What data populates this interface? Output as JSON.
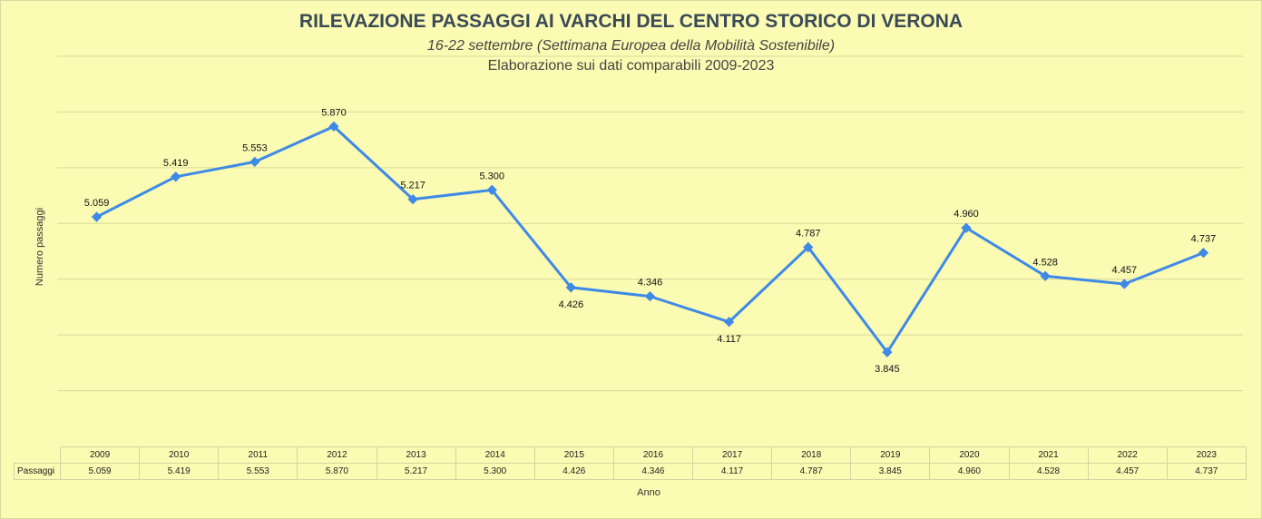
{
  "chart_data": {
    "type": "line",
    "title": "RILEVAZIONE PASSAGGI AI VARCHI DEL CENTRO STORICO DI VERONA",
    "subtitle": "16-22 settembre (Settimana Europea della Mobilità Sostenibile)",
    "subtitle2": "Elaborazione sui dati comparabili 2009-2023",
    "xlabel": "Anno",
    "ylabel": "Numero passaggi",
    "categories": [
      "2009",
      "2010",
      "2011",
      "2012",
      "2013",
      "2014",
      "2015",
      "2016",
      "2017",
      "2018",
      "2019",
      "2020",
      "2021",
      "2022",
      "2023"
    ],
    "series": [
      {
        "name": "Passaggi",
        "values": [
          5059,
          5419,
          5553,
          5870,
          5217,
          5300,
          4426,
          4346,
          4117,
          4787,
          3845,
          4960,
          4528,
          4457,
          4737
        ],
        "labels": [
          "5.059",
          "5.419",
          "5.553",
          "5.870",
          "5.217",
          "5.300",
          "4.426",
          "4.346",
          "4.117",
          "4.787",
          "3.845",
          "4.960",
          "4.528",
          "4.457",
          "4.737"
        ],
        "label_position": [
          "above",
          "above",
          "above",
          "above",
          "above",
          "above",
          "below",
          "above",
          "below",
          "above",
          "below",
          "above",
          "above",
          "above",
          "above"
        ],
        "color": "#3e8ae6"
      }
    ],
    "ylim": [
      3000,
      6500
    ],
    "grid": true,
    "y_tick_labels_shown": false,
    "data_table_shown": true,
    "colors": {
      "background": "#fbfbb3",
      "gridline": "#d9d9a0",
      "line": "#3e8ae6",
      "title": "#3a4a56"
    }
  }
}
